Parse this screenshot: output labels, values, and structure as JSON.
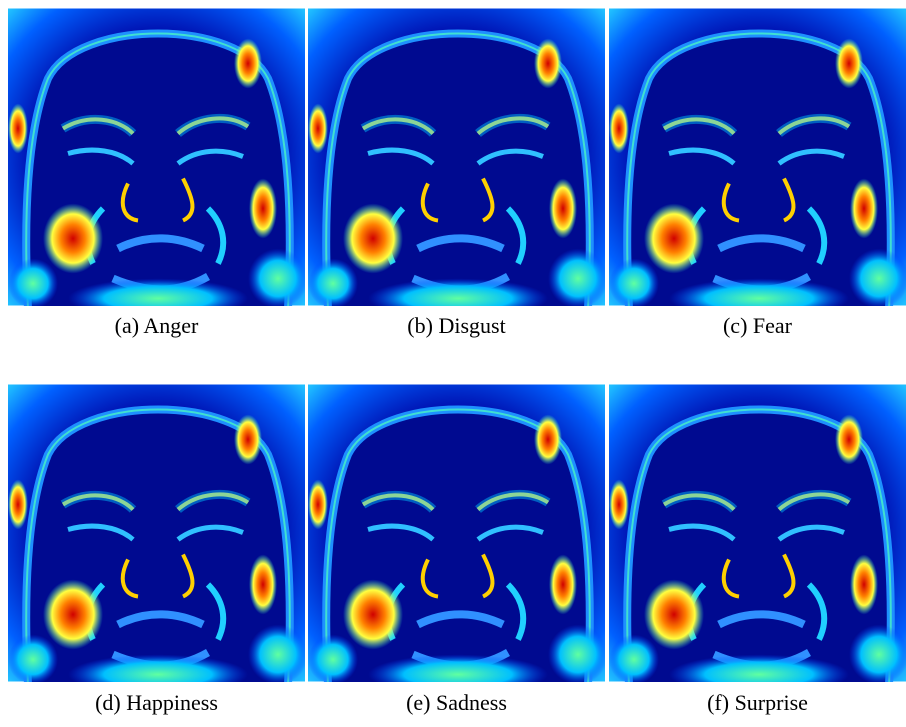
{
  "figure": {
    "panels": [
      {
        "caption": "(a) Anger"
      },
      {
        "caption": "(b) Disgust"
      },
      {
        "caption": "(c) Fear"
      },
      {
        "caption": "(d) Happiness"
      },
      {
        "caption": "(e) Sadness"
      },
      {
        "caption": "(f) Surprise"
      }
    ]
  }
}
